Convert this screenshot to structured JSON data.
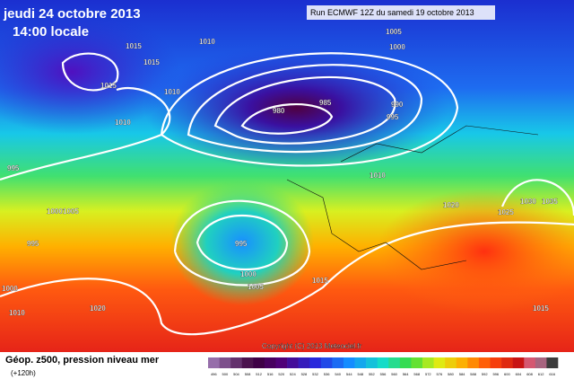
{
  "header": {
    "date": "jeudi 24 octobre 2013",
    "time": "14:00 locale",
    "run": "Run ECMWF 12Z du samedi 19 octobre 2013"
  },
  "map": {
    "isobar_labels": [
      1010,
      1015,
      1015,
      1015,
      1010,
      1010,
      1005,
      1000,
      980,
      985,
      990,
      995,
      995,
      1010,
      1000,
      1005,
      995,
      995,
      1020,
      1025,
      1030,
      1035,
      1000,
      1005,
      1015,
      1000,
      1010,
      1020,
      1015
    ],
    "copyright": "Copyright (C) 2013 Meteociel.fr"
  },
  "footer": {
    "title": "Géop. z500, pression niveau mer",
    "lead": "(+120h)",
    "scale": [
      496,
      500,
      504,
      508,
      512,
      516,
      520,
      524,
      528,
      532,
      536,
      540,
      544,
      548,
      552,
      556,
      560,
      564,
      568,
      572,
      576,
      580,
      584,
      588,
      592,
      596,
      600,
      604,
      608,
      612,
      616
    ]
  }
}
